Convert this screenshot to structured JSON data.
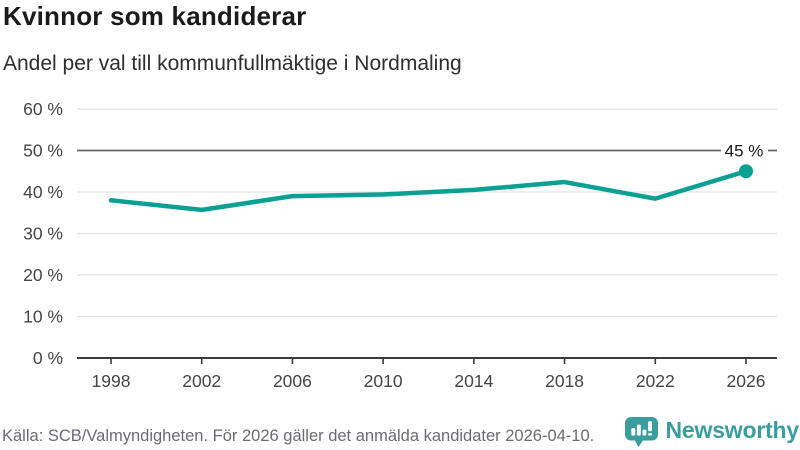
{
  "chart_data": {
    "type": "line",
    "title": "Kvinnor som kandiderar",
    "subtitle": "Andel per val till kommunfullmäktige i Nordmaling",
    "categories": [
      "1998",
      "2002",
      "2006",
      "2010",
      "2014",
      "2018",
      "2022",
      "2026"
    ],
    "values": [
      38,
      35.7,
      39,
      39.4,
      40.5,
      42.4,
      38.4,
      45
    ],
    "unit": "%",
    "ylim": [
      0,
      60
    ],
    "y_ticks": [
      0,
      10,
      20,
      30,
      40,
      50,
      60
    ],
    "y_tick_suffix": " %",
    "reference_line": 50,
    "last_point_label": "45 %",
    "line_color": "#0aa192",
    "grid": true,
    "legend": "none"
  },
  "footer": {
    "source": "Källa: SCB/Valmyndigheten. För 2026 gäller det anmälda kandidater 2026-04-10.",
    "brand": "Newsworthy",
    "brand_color": "#3a9e9e"
  },
  "colors": {
    "gridline": "#e3e3e3",
    "reference_line": "#6a6a6a",
    "axis": "#3b3b3b",
    "axis_text": "#454545"
  }
}
